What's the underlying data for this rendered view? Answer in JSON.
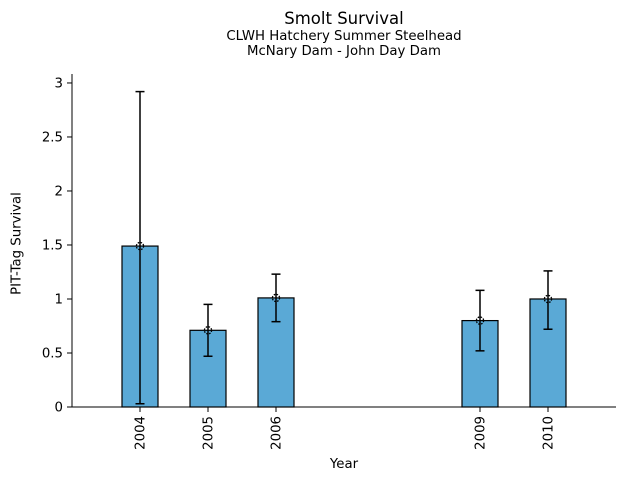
{
  "figure": {
    "title": "Smolt Survival",
    "subtitle1": "CLWH Hatchery Summer Steelhead",
    "subtitle2": "McNary Dam - John Day Dam"
  },
  "chart_data": {
    "type": "bar",
    "title": "Smolt Survival",
    "subtitle": [
      "CLWH Hatchery Summer Steelhead",
      "McNary Dam - John Day Dam"
    ],
    "xlabel": "Year",
    "ylabel": "PIT-Tag Survival",
    "categories": [
      2004,
      2005,
      2006,
      2009,
      2010
    ],
    "values": [
      1.49,
      0.71,
      1.01,
      0.8,
      1.0
    ],
    "error_low": [
      0.03,
      0.47,
      0.79,
      0.52,
      0.72
    ],
    "error_high": [
      2.92,
      0.95,
      1.23,
      1.08,
      1.26
    ],
    "x_tick_labels": [
      "2004",
      "2005",
      "2006",
      "2009",
      "2010"
    ],
    "yticks": [
      0,
      0.5,
      1,
      1.5,
      2,
      2.5,
      3
    ],
    "ytick_labels": [
      "0",
      "0.5",
      "1",
      "1.5",
      "2",
      "2.5",
      "3"
    ],
    "xlim": [
      2003,
      2011
    ],
    "ylim": [
      0,
      3.083
    ],
    "grid": false,
    "legend": null,
    "marker": "dotted-open-circle",
    "bar_color": "#5AA9D6",
    "bar_edge_color": "#000000",
    "error_color": "#000000",
    "axis_color": "#000000"
  }
}
